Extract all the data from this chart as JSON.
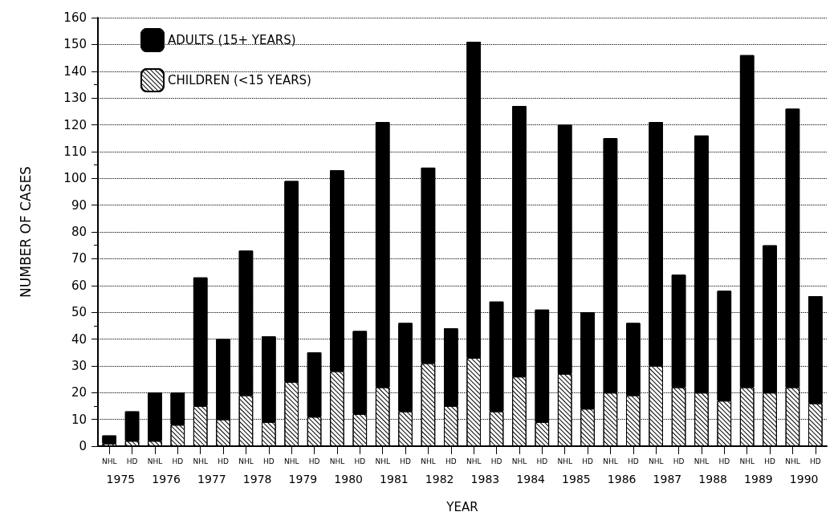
{
  "chart_data": {
    "type": "bar",
    "stacked": true,
    "xlabel": "YEAR",
    "ylabel": "NUMBER OF CASES",
    "categories": [
      "NHL",
      "HD",
      "NHL",
      "HD",
      "NHL",
      "HD",
      "NHL",
      "HD",
      "NHL",
      "HD",
      "NHL",
      "HD",
      "NHL",
      "HD",
      "NHL",
      "HD",
      "NHL",
      "HD",
      "NHL",
      "HD",
      "NHL",
      "HD",
      "NHL",
      "HD",
      "NHL",
      "HD",
      "NHL",
      "HD",
      "NHL",
      "HD",
      "NHL",
      "HD"
    ],
    "annotations": [
      "1975",
      "1976",
      "1977",
      "1978",
      "1979",
      "1980",
      "1981",
      "1982",
      "1983",
      "1984",
      "1985",
      "1986",
      "1987",
      "1988",
      "1989",
      "1990"
    ],
    "series": [
      {
        "name": "CHILDREN (<15 YEARS)",
        "color": "#ffffff",
        "values": [
          1,
          2,
          2,
          8,
          15,
          10,
          19,
          9,
          24,
          11,
          28,
          12,
          22,
          13,
          31,
          15,
          33,
          13,
          26,
          9,
          27,
          14,
          20,
          19,
          30,
          22,
          20,
          17,
          22,
          20,
          22,
          16
        ]
      },
      {
        "name": "ADULTS (15+ YEARS)",
        "color": "#000000",
        "values": [
          3,
          11,
          18,
          12,
          48,
          30,
          54,
          32,
          75,
          24,
          75,
          31,
          99,
          33,
          73,
          29,
          118,
          41,
          101,
          42,
          93,
          36,
          95,
          27,
          91,
          42,
          96,
          41,
          124,
          55,
          104,
          40
        ]
      }
    ],
    "ylim": [
      0,
      160
    ],
    "yticks": [
      0,
      10,
      20,
      30,
      40,
      50,
      60,
      70,
      80,
      90,
      100,
      110,
      120,
      130,
      140,
      150,
      160
    ],
    "grid": "y",
    "legend": "top left"
  }
}
